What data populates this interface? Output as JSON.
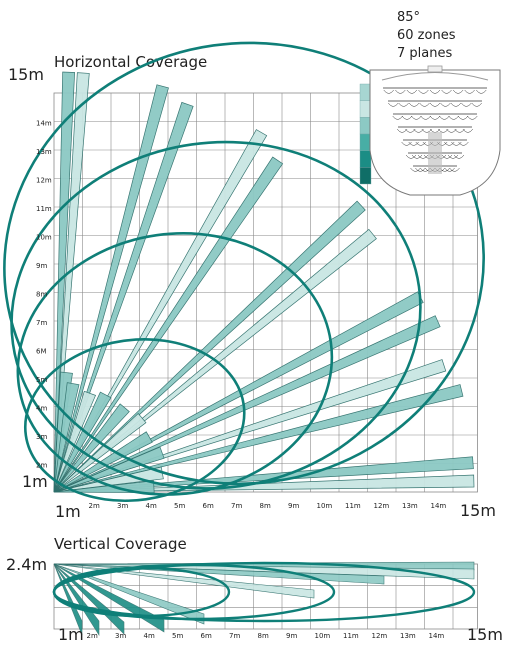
{
  "spec": {
    "angle": "85°",
    "zones": "60 zones",
    "planes": "7 planes"
  },
  "horizontal": {
    "title": "Horizontal Coverage",
    "corner_top": "15m",
    "corner_origin": "1m",
    "x_origin": "1m",
    "x_end": "15m",
    "y_ticks": [
      "2m",
      "3m",
      "4m",
      "5m",
      "6M",
      "7m",
      "8m",
      "9m",
      "10m",
      "11m",
      "12m",
      "13m",
      "14m"
    ],
    "x_ticks": [
      "2m",
      "3m",
      "4m",
      "5m",
      "6m",
      "7m",
      "8m",
      "9m",
      "10m",
      "11m",
      "12m",
      "13m",
      "14m"
    ]
  },
  "vertical": {
    "title": "Vertical Coverage",
    "height_label": "2.4m",
    "x_origin": "1m",
    "x_end": "15m",
    "x_ticks": [
      "2m",
      "3m",
      "4m",
      "5m",
      "6m",
      "7m",
      "8m",
      "9m",
      "10m",
      "11m",
      "12m",
      "13m",
      "14m"
    ]
  },
  "colors": {
    "ellipse": "#0f7f78",
    "beam_fill": "#8cc9c4",
    "beam_light": "#c9e6e3",
    "beam_stroke": "#2e6f6b",
    "grid": "#8a8a8a",
    "legend": [
      "#a7d6d2",
      "#c9e6e3",
      "#8cc9c4",
      "#48aea5",
      "#1b8d85",
      "#0f6e67"
    ]
  },
  "icons": {
    "sensor": "sensor-top-view-icon"
  }
}
